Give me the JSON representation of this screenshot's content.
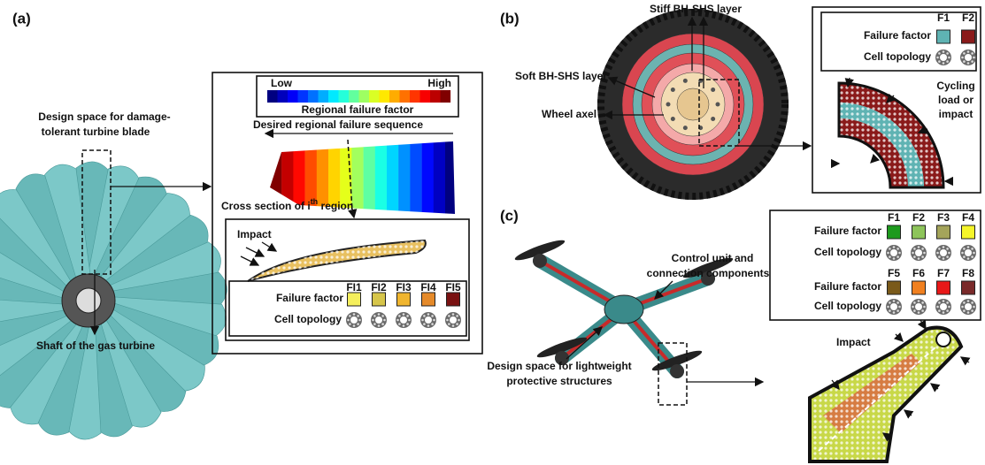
{
  "panel_a": {
    "label": "(a)",
    "blade_design_space": [
      "Design space for damage-",
      "tolerant turbine blade"
    ],
    "shaft": "Shaft of the gas turbine",
    "colorbar": {
      "low": "Low",
      "high": "High",
      "title": "Regional failure factor"
    },
    "sequence": "Desired regional failure sequence",
    "cross_section": {
      "prefix": "Cross section of i",
      "superscript": "th",
      "suffix": " region"
    },
    "impact": "Impact",
    "legend": {
      "failure_factor": "Failure factor",
      "cell_topology": "Cell topology",
      "items": [
        {
          "label": "FI1",
          "color": "#f5ef5c"
        },
        {
          "label": "FI2",
          "color": "#d6c54a"
        },
        {
          "label": "FI3",
          "color": "#f0b52e"
        },
        {
          "label": "FI4",
          "color": "#e58a2a"
        },
        {
          "label": "FI5",
          "color": "#7a1212"
        }
      ]
    }
  },
  "panel_b": {
    "label": "(b)",
    "stiff_layer": "Stiff BH-SHS layer",
    "soft_layer": "Soft BH-SHS layer",
    "axel": "Wheel axel",
    "load": [
      "Cycling",
      "load or",
      "impact"
    ],
    "legend": {
      "failure_factor": "Failure factor",
      "cell_topology": "Cell topology",
      "items": [
        {
          "label": "F1",
          "color": "#5fb3b3"
        },
        {
          "label": "F2",
          "color": "#8a1a1a"
        }
      ]
    }
  },
  "panel_c": {
    "label": "(c)",
    "control_unit": [
      "Control unit and",
      "connection components"
    ],
    "design_space": [
      "Design space for lightweight",
      "protective structures"
    ],
    "impact": "Impact",
    "legend_rows": [
      {
        "failure_factor": "Failure factor",
        "cell_topology": "Cell topology",
        "items": [
          {
            "label": "F1",
            "color": "#1d9a1d"
          },
          {
            "label": "F2",
            "color": "#8dc45a"
          },
          {
            "label": "F3",
            "color": "#a4a45a"
          },
          {
            "label": "F4",
            "color": "#f5f52a"
          }
        ]
      },
      {
        "failure_factor": "Failure factor",
        "cell_topology": "Cell topology",
        "items": [
          {
            "label": "F5",
            "color": "#7a5a1a"
          },
          {
            "label": "F6",
            "color": "#f08020"
          },
          {
            "label": "F7",
            "color": "#e81818"
          },
          {
            "label": "F8",
            "color": "#7a2a2a"
          }
        ]
      }
    ]
  }
}
